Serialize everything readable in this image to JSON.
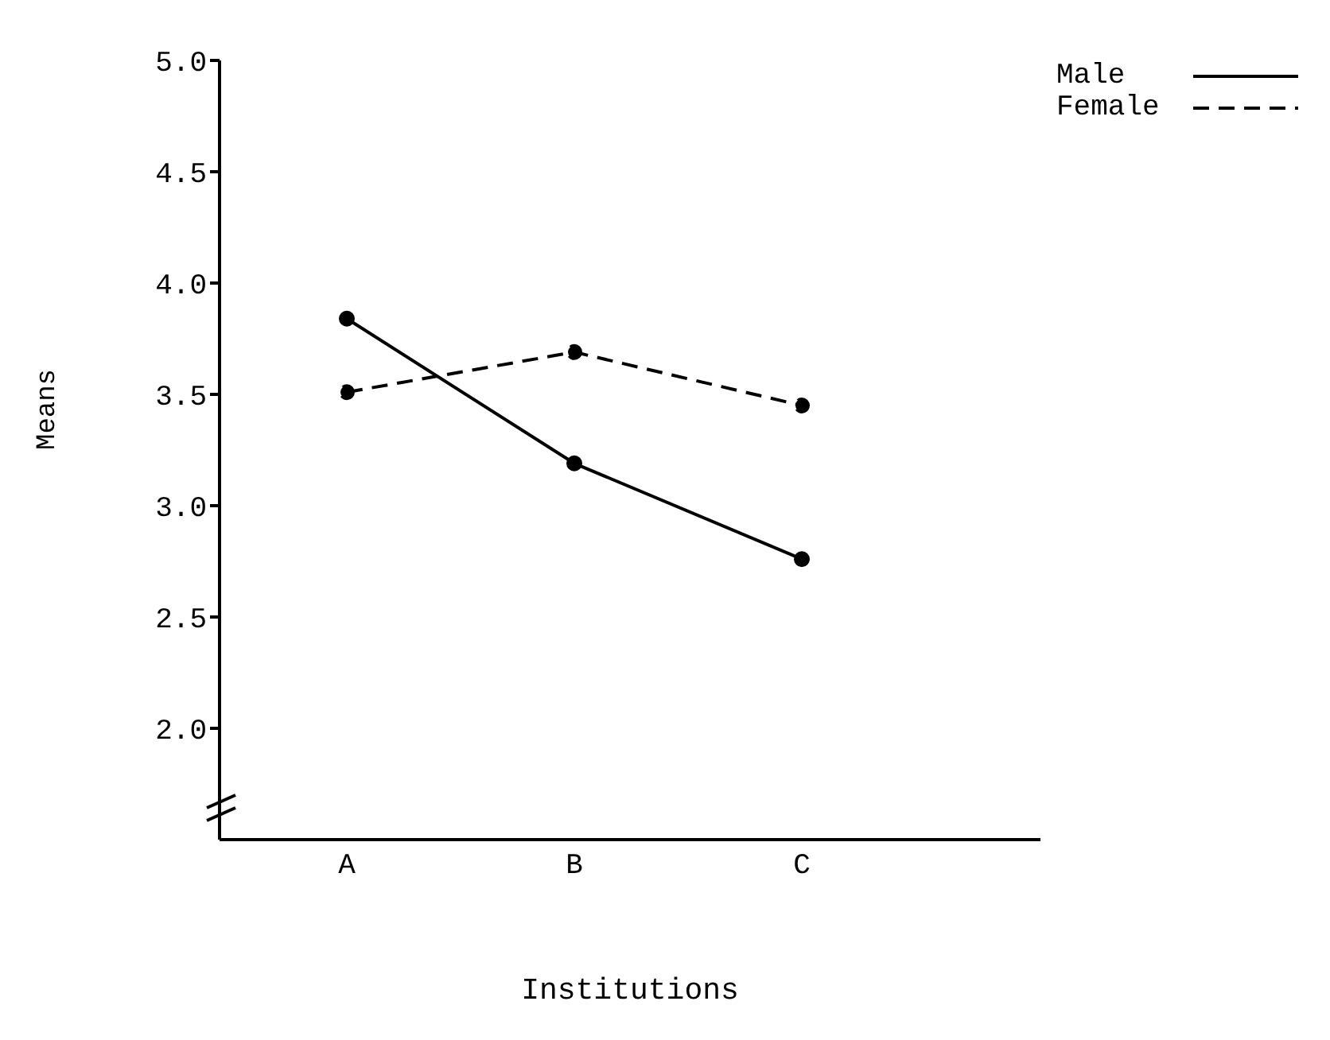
{
  "chart_data": {
    "type": "line",
    "xlabel": "Institutions",
    "ylabel": "Means",
    "categories": [
      "A",
      "B",
      "C"
    ],
    "series": [
      {
        "name": "Male",
        "color": "#000000",
        "line_style": "solid",
        "values": [
          3.84,
          3.19,
          2.76
        ]
      },
      {
        "name": "Female",
        "color": "#000000",
        "line_style": "dashed",
        "values": [
          3.51,
          3.69,
          3.45
        ]
      }
    ],
    "ylim": [
      1.5,
      5.0
    ],
    "yticks": [
      {
        "value": 2,
        "label": "2.0"
      },
      2.5,
      {
        "value": 3,
        "label": "3.0"
      },
      3.5,
      {
        "value": 4,
        "label": "4.0"
      },
      4.5,
      {
        "value": 5,
        "label": "5.0"
      }
    ],
    "grid": false,
    "legend": "top right",
    "marker": "circle"
  }
}
